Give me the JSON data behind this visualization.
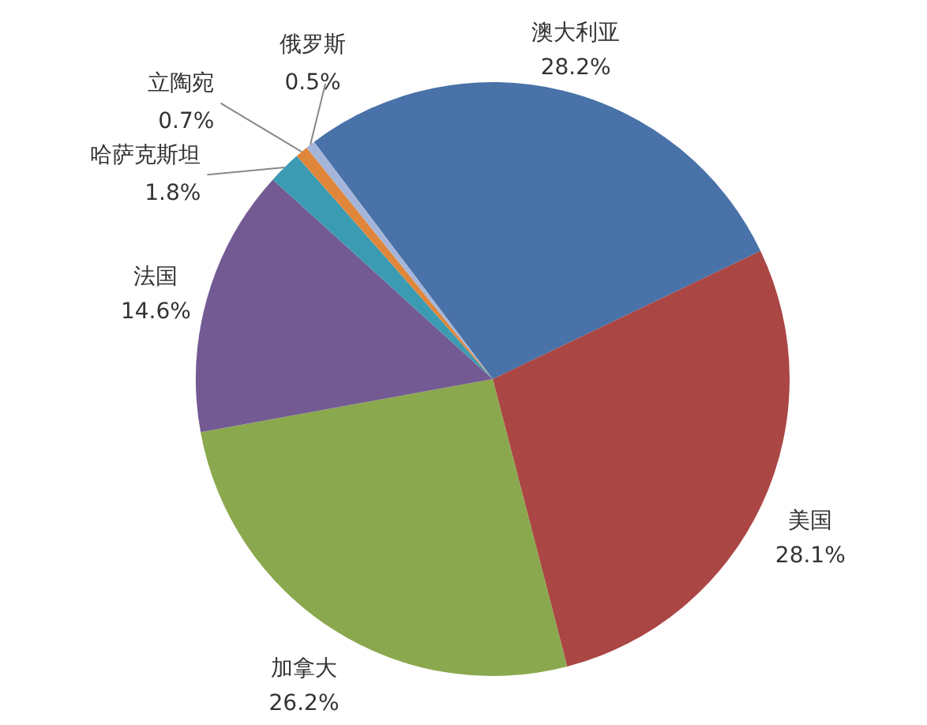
{
  "chart_data": {
    "type": "pie",
    "categories": [
      "澳大利亚",
      "美国",
      "加拿大",
      "法国",
      "哈萨克斯坦",
      "立陶宛",
      "俄罗斯"
    ],
    "values": [
      28.2,
      28.1,
      26.2,
      14.6,
      1.8,
      0.7,
      0.5
    ],
    "value_labels": [
      "28.2%",
      "28.1%",
      "26.2%",
      "14.6%",
      "1.8%",
      "0.7%",
      "0.5%"
    ],
    "colors": [
      "#4872a8",
      "#aa4644",
      "#8aa84e",
      "#735a93",
      "#3b9bb2",
      "#e0863a",
      "#a5b5d9"
    ]
  }
}
